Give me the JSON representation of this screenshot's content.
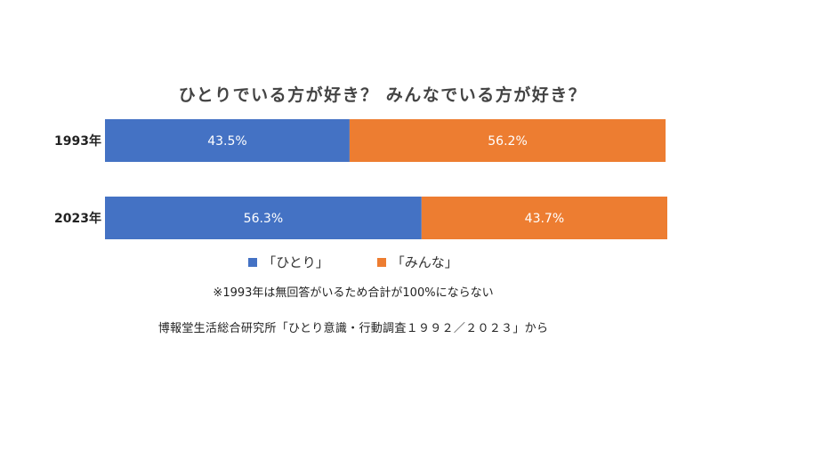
{
  "chart_data": {
    "type": "bar",
    "orientation": "horizontal",
    "stacked": true,
    "title": "ひとりでいる方が好き？ みんなでいる方が好き？",
    "categories": [
      "1993年",
      "2023年"
    ],
    "series": [
      {
        "name": "「ひとり」",
        "color": "#4472C4",
        "values": [
          43.5,
          56.3
        ],
        "labels": [
          "43.5%",
          "56.3%"
        ]
      },
      {
        "name": "「みんな」",
        "color": "#ED7D31",
        "values": [
          56.2,
          43.7
        ],
        "labels": [
          "56.2%",
          "43.7%"
        ]
      }
    ],
    "xlim": [
      0,
      100
    ],
    "grid": false,
    "legend_position": "bottom"
  },
  "note": "※1993年は無回答がいるため合計が100%にならない",
  "source": "博報堂生活総合研究所「ひとり意識・行動調査１９９２／２０２３」から"
}
